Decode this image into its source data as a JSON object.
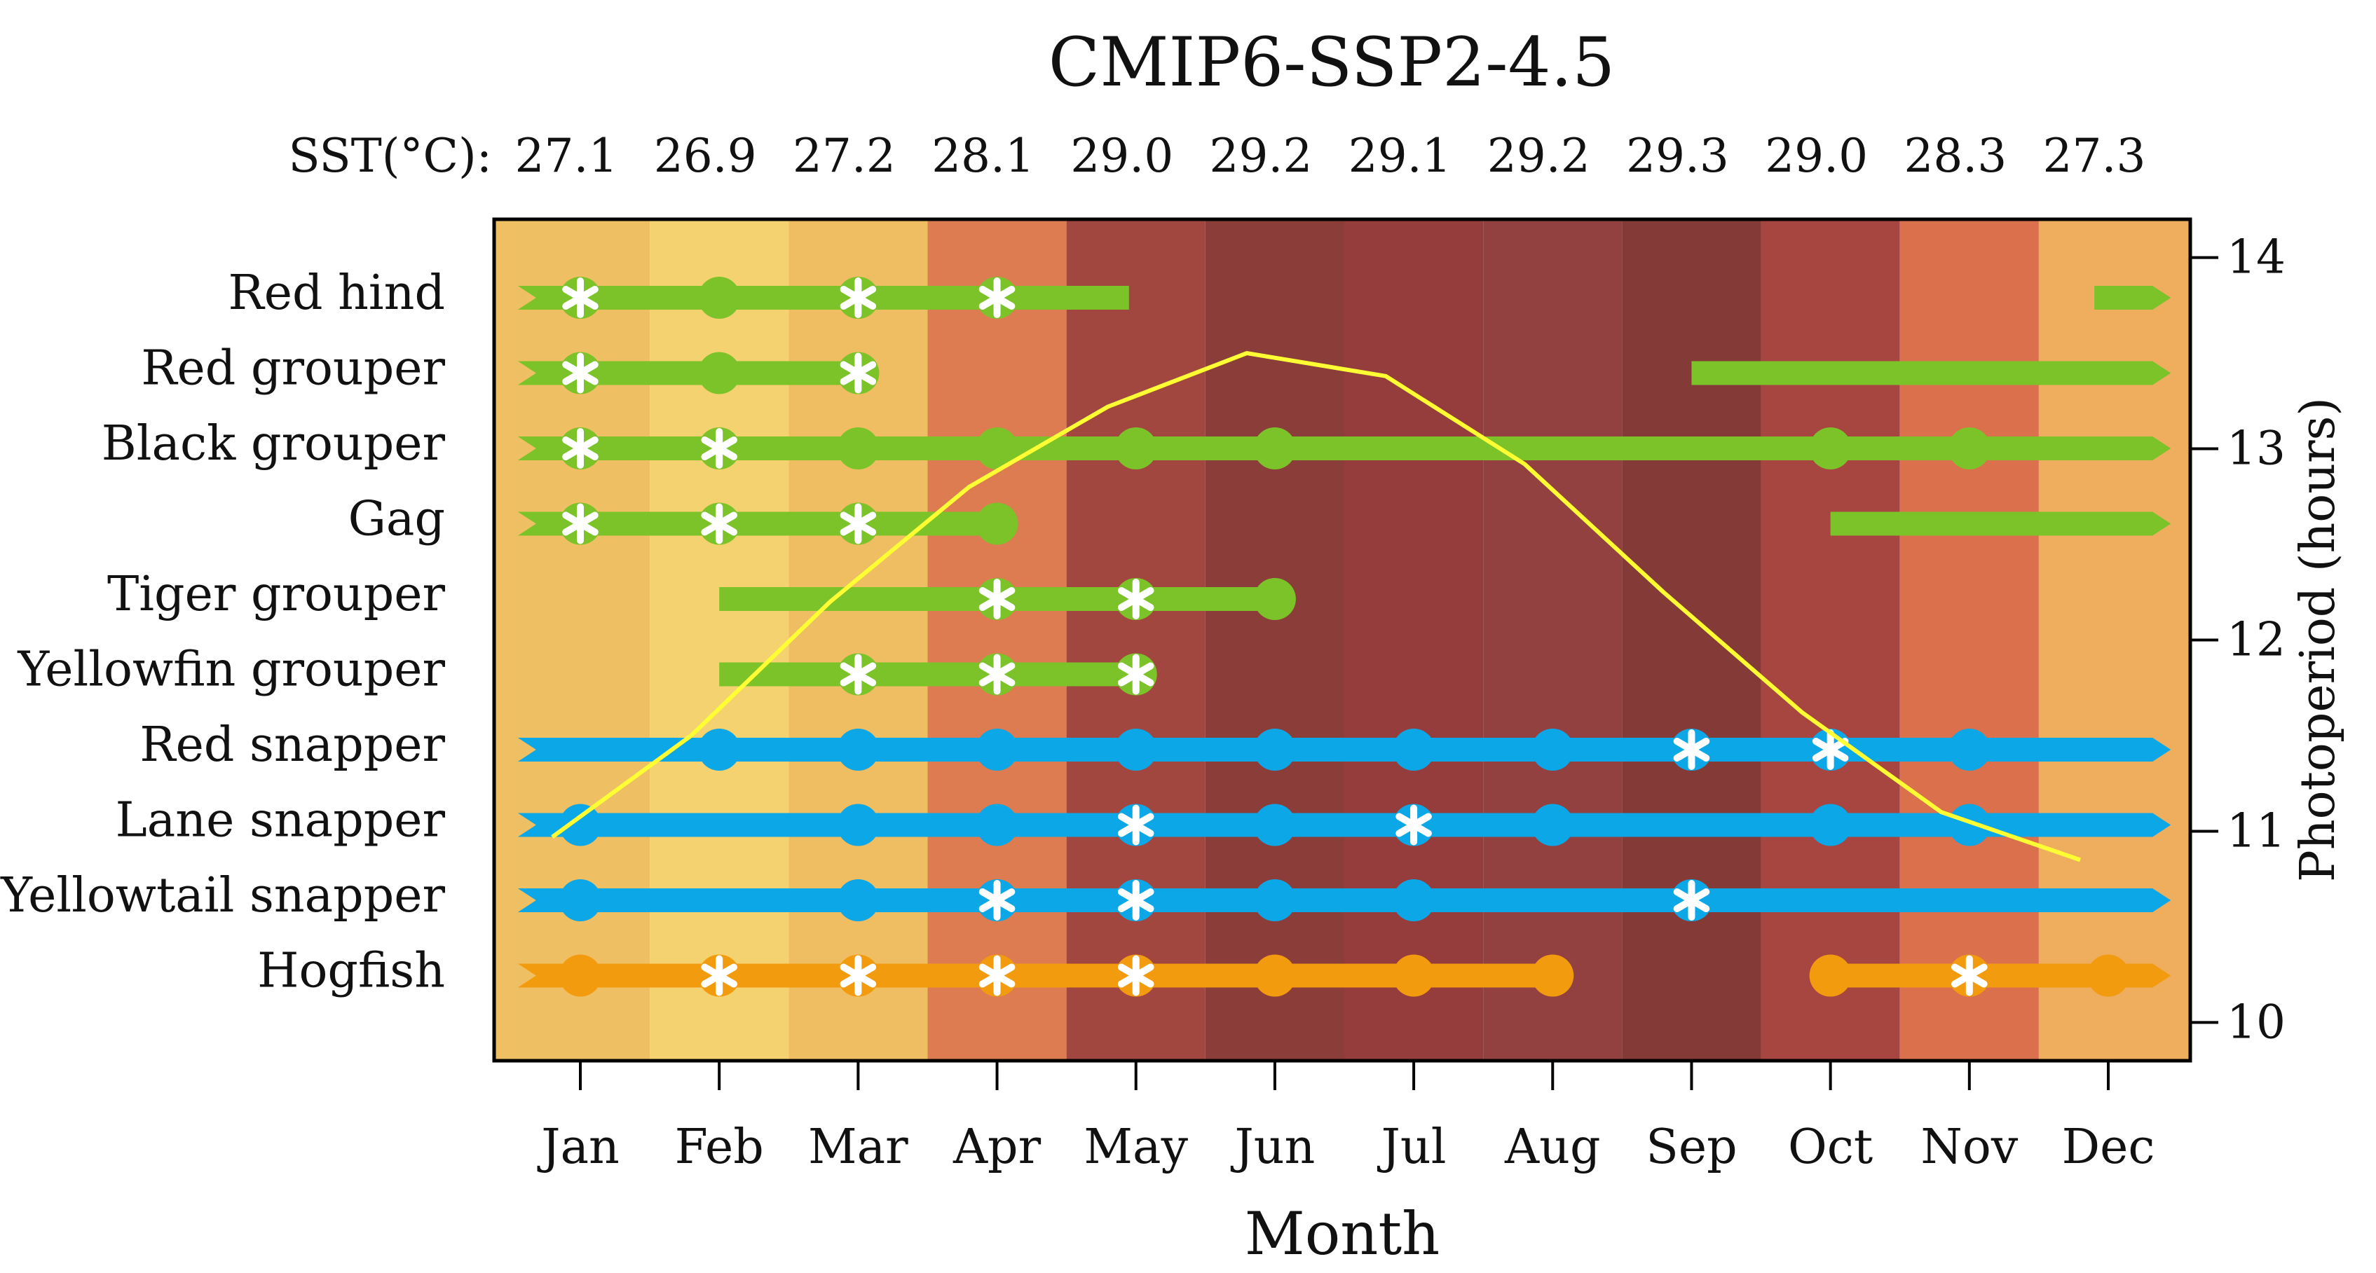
{
  "chart_data": {
    "type": "timeline",
    "title": "CMIP6-SSP2-4.5",
    "sst_label": "SST(°C):",
    "sst_values": [
      "27.1",
      "26.9",
      "27.2",
      "28.1",
      "29.0",
      "29.2",
      "29.1",
      "29.2",
      "29.3",
      "29.0",
      "28.3",
      "27.3"
    ],
    "months": [
      "Jan",
      "Feb",
      "Mar",
      "Apr",
      "May",
      "Jun",
      "Jul",
      "Aug",
      "Sep",
      "Oct",
      "Nov",
      "Dec"
    ],
    "xlabel": "Month",
    "ylabel_right": "Photoperiod (hours)",
    "y_right_ticks": [
      10,
      11,
      12,
      13,
      14
    ],
    "y_right_range": [
      9.8,
      14.2
    ],
    "photoperiod_line": {
      "color": "#ffff33",
      "values": [
        10.97,
        11.5,
        12.2,
        12.8,
        13.22,
        13.5,
        13.38,
        12.92,
        12.25,
        11.62,
        11.1,
        10.85
      ]
    },
    "background_colors": [
      "#efbf64",
      "#f5d270",
      "#efbd62",
      "#dd7c50",
      "#a1473f",
      "#8b3d39",
      "#943d3c",
      "#924040",
      "#843a37",
      "#a74540",
      "#db704d",
      "#efae5d"
    ],
    "series_colors": {
      "grouper": "#7bc328",
      "snapper": "#0ba7e6",
      "hogfish": "#f39b0f",
      "marker": "#ffffff"
    },
    "species": [
      {
        "name": "Red hind",
        "color": "grouper",
        "bars": [
          {
            "start": 0.55,
            "end": 4.95
          },
          {
            "start": 11.9,
            "end": 12.45
          }
        ],
        "dots": [
          2
        ],
        "stars": [
          1,
          3,
          4
        ]
      },
      {
        "name": "Red grouper",
        "color": "grouper",
        "bars": [
          {
            "start": 0.55,
            "end": 3.0
          },
          {
            "start": 9.0,
            "end": 12.45
          }
        ],
        "dots": [
          2
        ],
        "stars": [
          1,
          3
        ]
      },
      {
        "name": "Black grouper",
        "color": "grouper",
        "bars": [
          {
            "start": 0.55,
            "end": 12.45
          }
        ],
        "dots": [
          3,
          4,
          5,
          6,
          10,
          11
        ],
        "stars": [
          1,
          2
        ]
      },
      {
        "name": "Gag",
        "color": "grouper",
        "bars": [
          {
            "start": 0.55,
            "end": 4.0
          },
          {
            "start": 10.0,
            "end": 12.45
          }
        ],
        "dots": [
          4
        ],
        "stars": [
          1,
          2,
          3
        ]
      },
      {
        "name": "Tiger grouper",
        "color": "grouper",
        "bars": [
          {
            "start": 2.0,
            "end": 6.0
          }
        ],
        "dots": [
          6
        ],
        "stars": [
          4,
          5
        ]
      },
      {
        "name": "Yellowfin grouper",
        "color": "grouper",
        "bars": [
          {
            "start": 2.0,
            "end": 5.0
          }
        ],
        "dots": [],
        "stars": [
          3,
          4,
          5
        ]
      },
      {
        "name": "Red snapper",
        "color": "snapper",
        "bars": [
          {
            "start": 0.55,
            "end": 12.45
          }
        ],
        "dots": [
          2,
          3,
          4,
          5,
          6,
          7,
          8,
          11
        ],
        "stars": [
          9,
          10
        ]
      },
      {
        "name": "Lane snapper",
        "color": "snapper",
        "bars": [
          {
            "start": 0.55,
            "end": 12.45
          }
        ],
        "dots": [
          1,
          3,
          4,
          6,
          8,
          10,
          11
        ],
        "stars": [
          5,
          7
        ]
      },
      {
        "name": "Yellowtail snapper",
        "color": "snapper",
        "bars": [
          {
            "start": 0.55,
            "end": 12.45
          }
        ],
        "dots": [
          1,
          3,
          6,
          7
        ],
        "stars": [
          4,
          5,
          9
        ]
      },
      {
        "name": "Hogfish",
        "color": "hogfish",
        "bars": [
          {
            "start": 0.55,
            "end": 8.0
          },
          {
            "start": 10.0,
            "end": 12.45
          }
        ],
        "dots": [
          1,
          6,
          7,
          8,
          10,
          12
        ],
        "stars": [
          2,
          3,
          4,
          5,
          11
        ]
      }
    ]
  }
}
